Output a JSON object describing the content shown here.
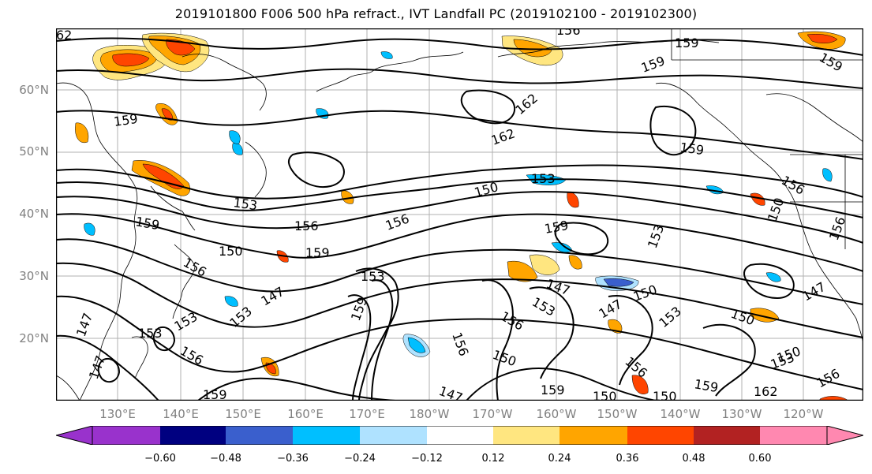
{
  "title": "2019101800 F006 500 hPa refract., IVT Landfall PC (2019102100 - 2019102300)",
  "map": {
    "latitude_labels": [
      "60°N",
      "50°N",
      "40°N",
      "30°N",
      "20°N"
    ],
    "longitude_labels": [
      "130°E",
      "140°E",
      "150°E",
      "160°E",
      "170°E",
      "180°W",
      "170°W",
      "160°W",
      "150°W",
      "140°W",
      "130°W",
      "120°W"
    ],
    "contour_labels": [
      "62",
      "156",
      "159",
      "159",
      "159",
      "162",
      "162",
      "159",
      "159",
      "153",
      "150",
      "153",
      "156",
      "156",
      "159",
      "159",
      "150",
      "156",
      "153",
      "156",
      "159",
      "150",
      "153",
      "156",
      "147",
      "147",
      "150",
      "153",
      "156",
      "159",
      "147",
      "147",
      "153",
      "156",
      "150",
      "147",
      "150",
      "153",
      "156",
      "159",
      "150",
      "153",
      "156",
      "147",
      "162",
      "150",
      "159",
      "153",
      "159",
      "156",
      "147",
      "150",
      "153"
    ],
    "field_colors": {
      "positive": "#ff8c00",
      "strong_positive": "#ff4500",
      "negative": "#00bfff",
      "weak_negative": "#afe2ff",
      "contour": "#000000",
      "coast": "#000000",
      "grid": "#b0b0b0"
    }
  },
  "colorbar": {
    "tick_labels": [
      "−0.60",
      "−0.48",
      "−0.36",
      "−0.24",
      "−0.12",
      "0.12",
      "0.24",
      "0.36",
      "0.48",
      "0.60"
    ],
    "colors": [
      "#9932cc",
      "#000080",
      "#3a5fcd",
      "#00bfff",
      "#afe2ff",
      "#ffffff",
      "#ffe680",
      "#ffa500",
      "#ff4500",
      "#b22222",
      "#ff88b0"
    ]
  }
}
